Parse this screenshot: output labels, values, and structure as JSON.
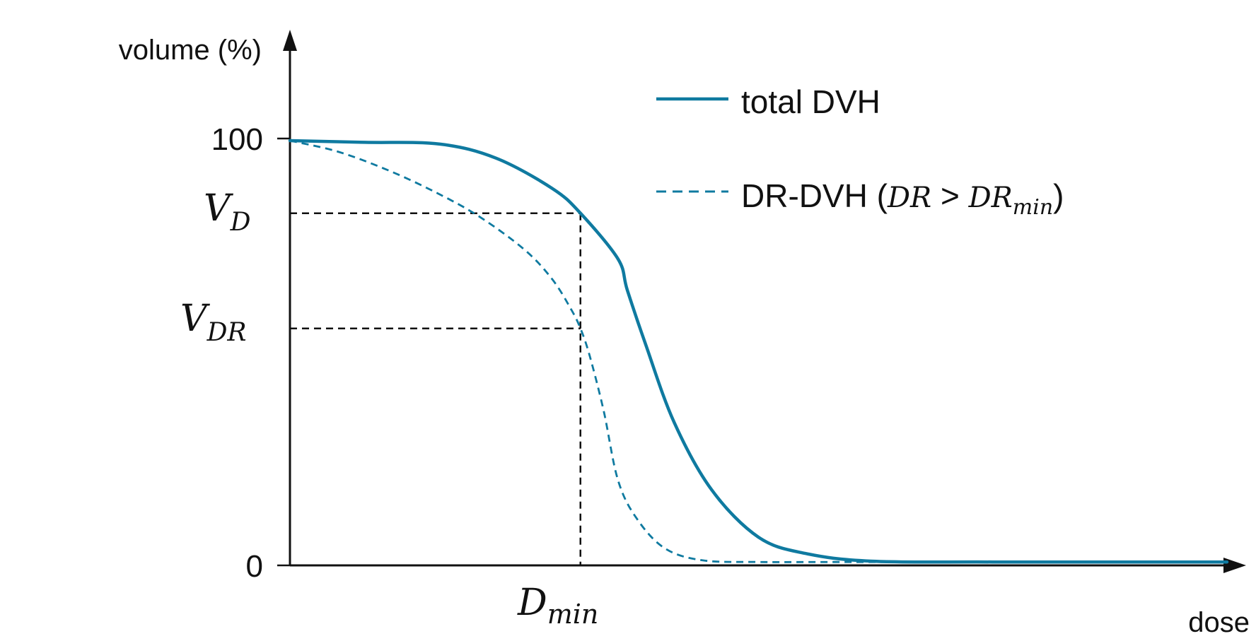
{
  "chart_data": {
    "type": "line",
    "ylabel": "volume (%)",
    "xlabel": "dose",
    "ylim": [
      0,
      100
    ],
    "xlim": [
      0,
      10
    ],
    "y_ticks": [
      {
        "value": 100,
        "label": "100"
      },
      {
        "value": 0,
        "label": "0"
      }
    ],
    "markers": {
      "d_min": {
        "x": 3.1,
        "label_main": "D",
        "label_sub": "min"
      },
      "v_d": {
        "y": 82.5,
        "label_main": "V",
        "label_sub": "D"
      },
      "v_dr": {
        "y": 55.5,
        "label_main": "V",
        "label_sub": "DR"
      }
    },
    "series": [
      {
        "name": "total DVH",
        "style": "solid",
        "color": "#0F7AA0",
        "x": [
          0,
          0.8,
          1.6,
          2.2,
          2.8,
          3.1,
          3.5,
          3.6,
          3.8,
          4.1,
          4.5,
          5.0,
          5.5,
          6.2,
          7.5,
          10
        ],
        "y": [
          99.5,
          99.1,
          98.7,
          95.4,
          88.3,
          82.5,
          71.8,
          64.5,
          51.5,
          33.5,
          17.7,
          6.6,
          2.8,
          1.0,
          0.8,
          0.8
        ]
      },
      {
        "name": "DR-DVH",
        "style": "dashed",
        "color": "#0F7AA0",
        "x": [
          0,
          0.5,
          1.0,
          1.5,
          2.0,
          2.5,
          2.8,
          3.0,
          3.1,
          3.2,
          3.35,
          3.5,
          3.7,
          4.0,
          4.4,
          5.0,
          6.0,
          10
        ],
        "y": [
          99.5,
          97.0,
          93.0,
          88.0,
          82.0,
          74.0,
          67.0,
          60.0,
          55.5,
          49.0,
          36.0,
          20.0,
          11.0,
          4.0,
          1.2,
          0.8,
          0.8,
          0.8
        ]
      }
    ],
    "legend": {
      "placement": "top-right",
      "entries": [
        {
          "text": "total DVH"
        },
        {
          "text_prefix": "DR-DVH (",
          "m1": "DR",
          "op": " > ",
          "m2_main": "DR",
          "m2_sub": "min",
          "text_suffix": ")"
        }
      ]
    }
  }
}
